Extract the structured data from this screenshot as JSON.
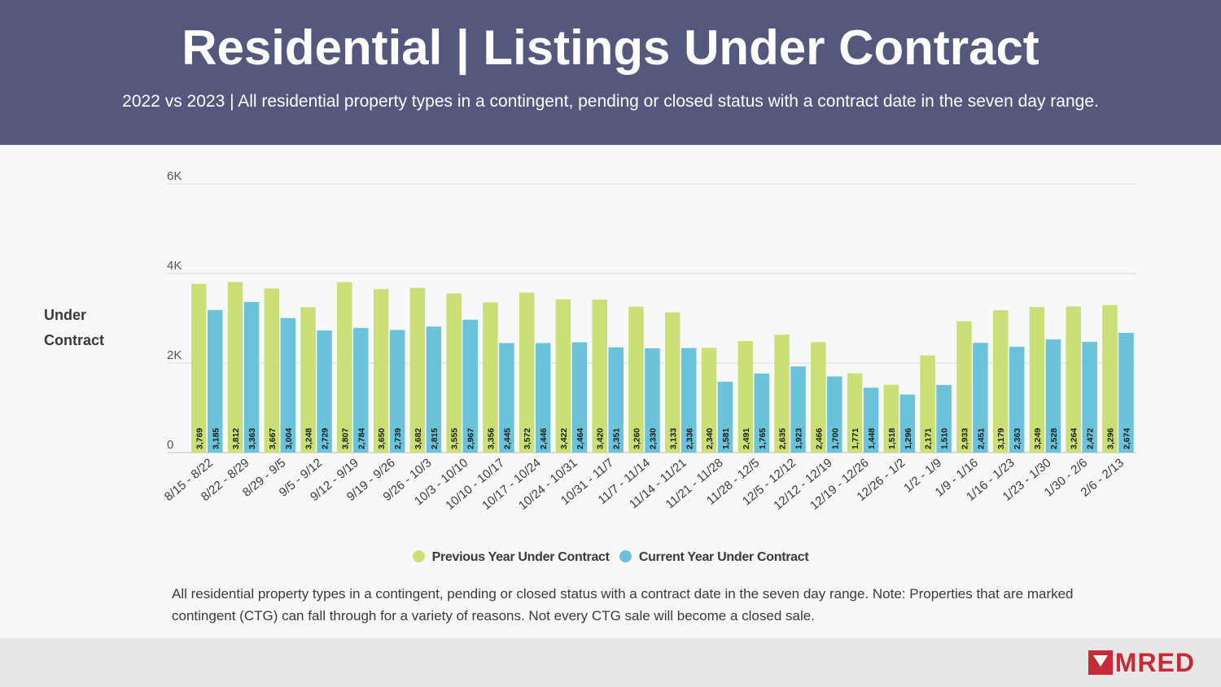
{
  "header": {
    "title": "Residential | Listings Under Contract",
    "subtitle": "2022 vs 2023 | All residential property types in a contingent, pending or closed status with a contract date in the seven day range."
  },
  "note": "All residential property types in a contingent, pending or closed status with a contract date in the seven day range. Note: Properties that are marked contingent (CTG) can fall through for a variety of reasons. Not every CTG sale will become a closed sale.",
  "logo": {
    "text": "MRED"
  },
  "colors": {
    "header_bg": "#53587c",
    "previous": "#cbdf77",
    "current": "#6ac3db",
    "brand": "#c62b38"
  },
  "chart_data": {
    "type": "bar",
    "ylabel": "Under Contract",
    "ylim": [
      0,
      6000
    ],
    "yticks": [
      0,
      2000,
      4000,
      6000
    ],
    "ytick_labels": [
      "0",
      "2K",
      "4K",
      "6K"
    ],
    "grid": true,
    "legend_position": "bottom",
    "categories": [
      "8/15 - 8/22",
      "8/22 - 8/29",
      "8/29 - 9/5",
      "9/5 - 9/12",
      "9/12 - 9/19",
      "9/19 - 9/26",
      "9/26 - 10/3",
      "10/3 - 10/10",
      "10/10 - 10/17",
      "10/17 - 10/24",
      "10/24 - 10/31",
      "10/31 - 11/7",
      "11/7 - 11/14",
      "11/14 - 11/21",
      "11/21 - 11/28",
      "11/28 - 12/5",
      "12/5 - 12/12",
      "12/12 - 12/19",
      "12/19 - 12/26",
      "12/26 - 1/2",
      "1/2 - 1/9",
      "1/9 - 1/16",
      "1/16 - 1/23",
      "1/23 - 1/30",
      "1/30 - 2/6",
      "2/6 - 2/13"
    ],
    "series": [
      {
        "name": "Previous Year Under Contract",
        "color": "#cbdf77",
        "values": [
          3769,
          3812,
          3667,
          3248,
          3807,
          3650,
          3682,
          3555,
          3356,
          3572,
          3422,
          3420,
          3260,
          3133,
          2340,
          2491,
          2635,
          2466,
          1771,
          1518,
          2171,
          2933,
          3179,
          3249,
          3264,
          3296
        ]
      },
      {
        "name": "Current Year Under Contract",
        "color": "#6ac3db",
        "values": [
          3185,
          3363,
          3004,
          2729,
          2784,
          2739,
          2815,
          2967,
          2445,
          2446,
          2464,
          2351,
          2330,
          2336,
          1581,
          1765,
          1923,
          1700,
          1448,
          1296,
          1510,
          2451,
          2363,
          2528,
          2472,
          2674
        ]
      }
    ]
  }
}
